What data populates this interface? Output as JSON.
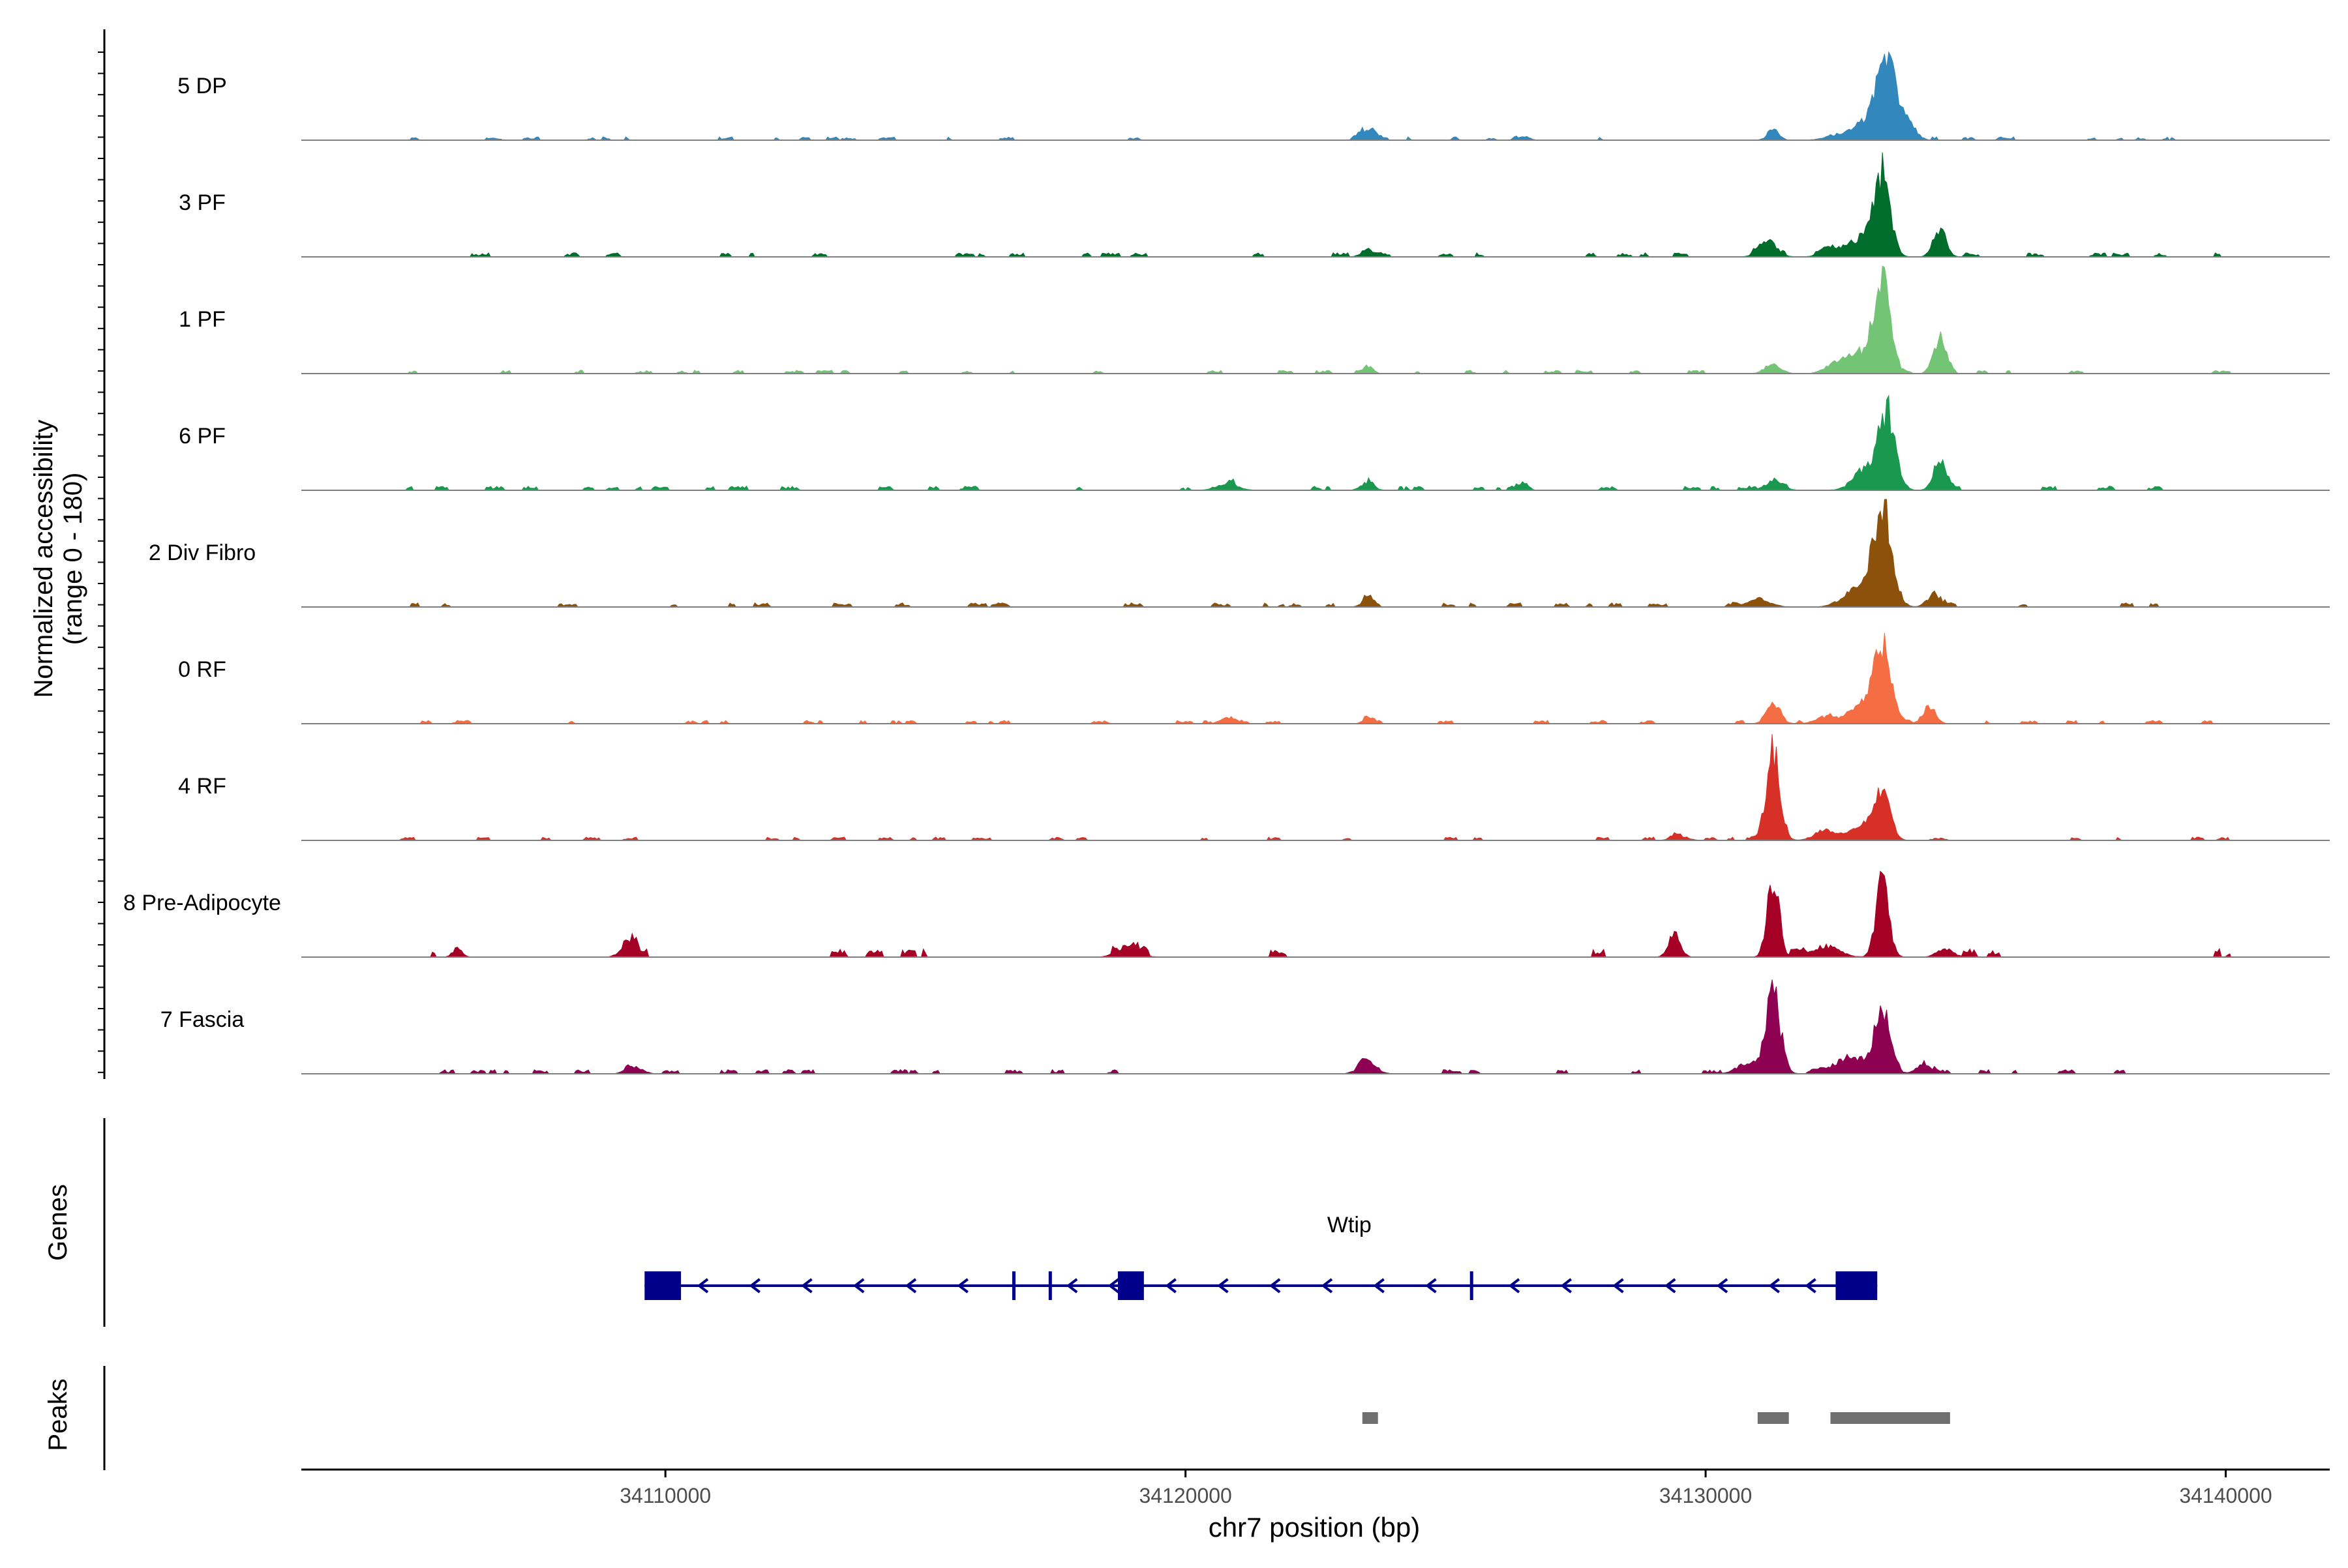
{
  "chart_data": {
    "type": "area",
    "title": "",
    "ylabel_line1": "Normalized accessibility",
    "ylabel_line2": "(range 0 - 180)",
    "xlabel": "chr7 position (bp)",
    "xlim": [
      34103000,
      34142000
    ],
    "ylim": [
      0,
      180
    ],
    "x_ticks": [
      34110000,
      34120000,
      34130000,
      34140000
    ],
    "x_tick_labels": [
      "34110000",
      "34120000",
      "34130000",
      "34140000"
    ],
    "genes_label": "Genes",
    "peaks_label": "Peaks",
    "series": [
      {
        "name": "5 DP",
        "color": "#3288bd",
        "peaks": [
          [
            34133500,
            115,
            170
          ],
          [
            34133200,
            40,
            280
          ],
          [
            34133900,
            25,
            150
          ],
          [
            34131300,
            16,
            110
          ],
          [
            34123500,
            18,
            140
          ],
          [
            34132500,
            8,
            220
          ],
          [
            34126500,
            7,
            100
          ]
        ],
        "noise": 4,
        "noise_start": 34104800,
        "noise_end": 34140100,
        "density": 0.45
      },
      {
        "name": "3 PF",
        "color": "#006d2c",
        "peaks": [
          [
            34133400,
            135,
            150
          ],
          [
            34133000,
            30,
            260
          ],
          [
            34134500,
            45,
            120
          ],
          [
            34131200,
            25,
            170
          ],
          [
            34132400,
            14,
            180
          ],
          [
            34123500,
            12,
            120
          ]
        ],
        "noise": 5,
        "noise_start": 34104800,
        "noise_end": 34140100,
        "density": 0.45
      },
      {
        "name": "1 PF",
        "color": "#74c476",
        "peaks": [
          [
            34133400,
            150,
            150
          ],
          [
            34133000,
            35,
            260
          ],
          [
            34134500,
            60,
            120
          ],
          [
            34131300,
            16,
            150
          ],
          [
            34132500,
            14,
            200
          ],
          [
            34123500,
            12,
            100
          ]
        ],
        "noise": 4,
        "noise_start": 34104800,
        "noise_end": 34140100,
        "density": 0.55
      },
      {
        "name": "6 PF",
        "color": "#1a9850",
        "peaks": [
          [
            34133500,
            120,
            160
          ],
          [
            34133100,
            35,
            240
          ],
          [
            34134500,
            50,
            120
          ],
          [
            34131300,
            14,
            180
          ],
          [
            34123500,
            14,
            120
          ],
          [
            34126500,
            14,
            90
          ],
          [
            34120800,
            12,
            200
          ]
        ],
        "noise": 5,
        "noise_start": 34104800,
        "noise_end": 34140100,
        "density": 0.5
      },
      {
        "name": "2 Div Fibro",
        "color": "#8c510a",
        "peaks": [
          [
            34133400,
            165,
            180
          ],
          [
            34132900,
            30,
            260
          ],
          [
            34134400,
            22,
            130
          ],
          [
            34131000,
            10,
            250
          ],
          [
            34123500,
            14,
            110
          ]
        ],
        "noise": 5,
        "noise_start": 34104800,
        "noise_end": 34140100,
        "density": 0.5
      },
      {
        "name": "0 RF",
        "color": "#f46d43",
        "peaks": [
          [
            34133400,
            125,
            160
          ],
          [
            34133000,
            30,
            250
          ],
          [
            34134300,
            30,
            120
          ],
          [
            34131300,
            35,
            130
          ],
          [
            34132300,
            12,
            180
          ],
          [
            34120800,
            10,
            130
          ],
          [
            34123500,
            8,
            100
          ]
        ],
        "noise": 4,
        "noise_start": 34104800,
        "noise_end": 34140100,
        "density": 0.45
      },
      {
        "name": "4 RF",
        "color": "#d73027",
        "peaks": [
          [
            34131300,
            155,
            130
          ],
          [
            34133400,
            75,
            150
          ],
          [
            34133000,
            28,
            240
          ],
          [
            34132300,
            16,
            200
          ],
          [
            34129500,
            8,
            150
          ]
        ],
        "noise": 4,
        "noise_start": 34104800,
        "noise_end": 34140100,
        "density": 0.45
      },
      {
        "name": "8 Pre-Adipocyte",
        "color": "#a50026",
        "peaks": [
          [
            34131300,
            140,
            110
          ],
          [
            34133400,
            130,
            120
          ],
          [
            34129400,
            40,
            110
          ],
          [
            34109300,
            28,
            140
          ],
          [
            34118900,
            18,
            200
          ],
          [
            34106000,
            14,
            90
          ],
          [
            34140200,
            16,
            90
          ],
          [
            34132300,
            18,
            260
          ],
          [
            34134600,
            14,
            150
          ]
        ],
        "noise": 10,
        "noise_start": 34104800,
        "noise_end": 34140100,
        "density": 0.22
      },
      {
        "name": "7 Fascia",
        "color": "#8e0152",
        "peaks": [
          [
            34131300,
            130,
            140
          ],
          [
            34133400,
            105,
            150
          ],
          [
            34132800,
            30,
            300
          ],
          [
            34130800,
            18,
            200
          ],
          [
            34123500,
            22,
            160
          ],
          [
            34109400,
            12,
            150
          ],
          [
            34134200,
            18,
            140
          ]
        ],
        "noise": 5,
        "noise_start": 34104800,
        "noise_end": 34140100,
        "density": 0.5
      }
    ],
    "gene": {
      "name": "Wtip",
      "color": "#00008b",
      "start": 34109600,
      "end": 34133300,
      "strand": "-",
      "exons": [
        [
          34109600,
          34110300
        ],
        [
          34118700,
          34119200
        ],
        [
          34132500,
          34133300
        ]
      ],
      "ticks": [
        34116700,
        34117400,
        34125500
      ],
      "arrows": [
        34110700,
        34111700,
        34112700,
        34113700,
        34114700,
        34115700,
        34117800,
        34118600,
        34119700,
        34120700,
        34121700,
        34122700,
        34123700,
        34124700,
        34126300,
        34127300,
        34128300,
        34129300,
        34130300,
        34131300,
        34132000
      ]
    },
    "peak_regions": [
      [
        34123400,
        34123700
      ],
      [
        34131000,
        34131600
      ],
      [
        34132400,
        34134700
      ]
    ]
  }
}
